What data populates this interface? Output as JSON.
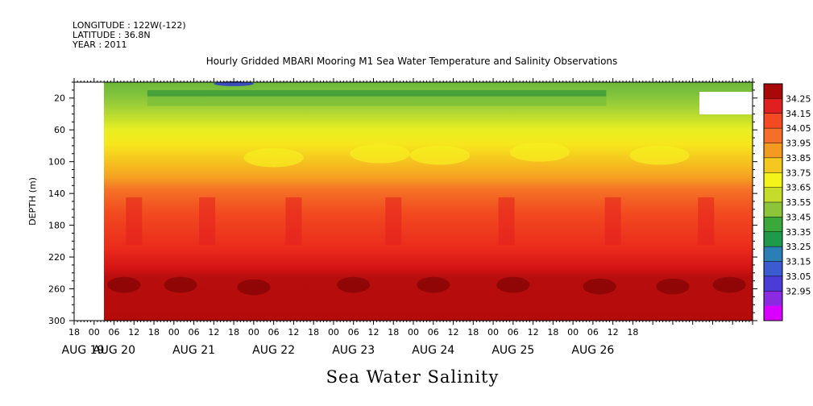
{
  "header": {
    "longitude": "LONGITUDE : 122W(-122)",
    "latitude": "LATITUDE : 36.8N",
    "year": "YEAR : 2011"
  },
  "chart_data": {
    "type": "heatmap",
    "title": "Hourly Gridded MBARI Mooring M1 Sea Water Temperature and Salinity Observations",
    "xlabel": "",
    "ylabel": "DEPTH (m)",
    "bottom_label": "Sea Water Salinity",
    "x_range_hours": [
      0,
      204
    ],
    "x_origin": "AUG 19 18:00",
    "x_hour_ticks": [
      "18",
      "00",
      "06",
      "12",
      "18",
      "00",
      "06",
      "12",
      "18",
      "00",
      "06",
      "12",
      "18",
      "00",
      "06",
      "12",
      "18",
      "00",
      "06",
      "12",
      "18",
      "00",
      "06",
      "12",
      "18",
      "00",
      "06",
      "12",
      "18"
    ],
    "day_labels": [
      "AUG 19",
      "AUG 20",
      "AUG 21",
      "AUG 22",
      "AUG 23",
      "AUG 24",
      "AUG 25",
      "AUG 26"
    ],
    "data_start": "AUG 20 00:00",
    "ylim": [
      300,
      0
    ],
    "y_ticks": [
      20,
      60,
      100,
      140,
      180,
      220,
      260,
      300
    ],
    "colorbar": {
      "levels": [
        32.95,
        33.05,
        33.15,
        33.25,
        33.35,
        33.45,
        33.55,
        33.65,
        33.75,
        33.85,
        33.95,
        34.05,
        34.15,
        34.25
      ],
      "labels": [
        "34.25",
        "34.15",
        "34.05",
        "33.95",
        "33.85",
        "33.75",
        "33.65",
        "33.55",
        "33.45",
        "33.35",
        "33.25",
        "33.15",
        "33.05",
        "32.95"
      ],
      "colors": [
        "#d800ff",
        "#8a2be2",
        "#4b3cd8",
        "#3a5cd0",
        "#2b7fb4",
        "#1f9a4a",
        "#3aa83a",
        "#8cc43a",
        "#c6dc2a",
        "#f4f41c",
        "#f4c820",
        "#f49a20",
        "#f4702a",
        "#f44a22",
        "#e02020",
        "#a80808"
      ]
    },
    "depth_profile": [
      {
        "depth": 5,
        "salinity": 33.55
      },
      {
        "depth": 20,
        "salinity": 33.6
      },
      {
        "depth": 40,
        "salinity": 33.7
      },
      {
        "depth": 60,
        "salinity": 33.8
      },
      {
        "depth": 80,
        "salinity": 33.9
      },
      {
        "depth": 100,
        "salinity": 33.95
      },
      {
        "depth": 120,
        "salinity": 34.0
      },
      {
        "depth": 140,
        "salinity": 34.05
      },
      {
        "depth": 180,
        "salinity": 34.1
      },
      {
        "depth": 220,
        "salinity": 34.15
      },
      {
        "depth": 260,
        "salinity": 34.25
      },
      {
        "depth": 300,
        "salinity": 34.2
      }
    ]
  }
}
